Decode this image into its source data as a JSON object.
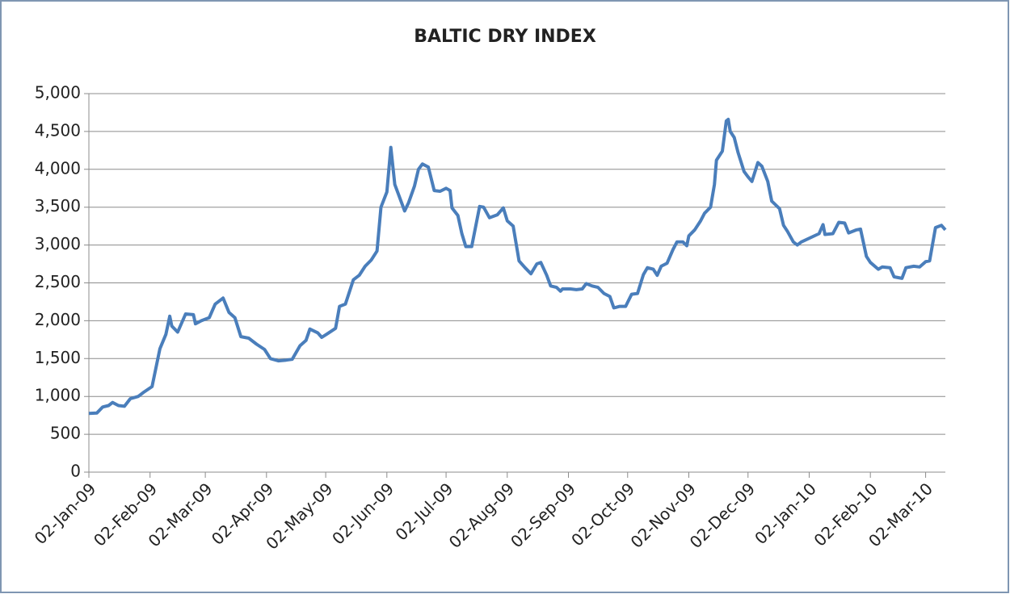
{
  "chart_data": {
    "type": "line",
    "title": "BALTIC DRY INDEX",
    "color": "#4a7ebb",
    "grid": true,
    "x": [
      "2009-01-02",
      "2009-01-06",
      "2009-01-09",
      "2009-01-12",
      "2009-01-14",
      "2009-01-17",
      "2009-01-20",
      "2009-01-23",
      "2009-01-27",
      "2009-01-30",
      "2009-02-03",
      "2009-02-07",
      "2009-02-10",
      "2009-02-12",
      "2009-02-13",
      "2009-02-16",
      "2009-02-20",
      "2009-02-24",
      "2009-02-25",
      "2009-02-28",
      "2009-03-04",
      "2009-03-07",
      "2009-03-11",
      "2009-03-14",
      "2009-03-17",
      "2009-03-20",
      "2009-03-24",
      "2009-03-28",
      "2009-04-01",
      "2009-04-04",
      "2009-04-08",
      "2009-04-12",
      "2009-04-15",
      "2009-04-19",
      "2009-04-22",
      "2009-04-24",
      "2009-04-28",
      "2009-04-30",
      "2009-05-03",
      "2009-05-07",
      "2009-05-09",
      "2009-05-12",
      "2009-05-16",
      "2009-05-19",
      "2009-05-22",
      "2009-05-25",
      "2009-05-28",
      "2009-05-30",
      "2009-06-02",
      "2009-06-04",
      "2009-06-06",
      "2009-06-08",
      "2009-06-11",
      "2009-06-13",
      "2009-06-16",
      "2009-06-18",
      "2009-06-20",
      "2009-06-23",
      "2009-06-26",
      "2009-06-29",
      "2009-07-02",
      "2009-07-04",
      "2009-07-05",
      "2009-07-08",
      "2009-07-10",
      "2009-07-12",
      "2009-07-15",
      "2009-07-19",
      "2009-07-21",
      "2009-07-24",
      "2009-07-28",
      "2009-07-31",
      "2009-08-02",
      "2009-08-05",
      "2009-08-08",
      "2009-08-11",
      "2009-08-14",
      "2009-08-17",
      "2009-08-19",
      "2009-08-22",
      "2009-08-24",
      "2009-08-27",
      "2009-08-29",
      "2009-08-30",
      "2009-09-03",
      "2009-09-06",
      "2009-09-09",
      "2009-09-11",
      "2009-09-14",
      "2009-09-17",
      "2009-09-20",
      "2009-09-23",
      "2009-09-25",
      "2009-09-28",
      "2009-10-01",
      "2009-10-04",
      "2009-10-07",
      "2009-10-10",
      "2009-10-12",
      "2009-10-15",
      "2009-10-17",
      "2009-10-19",
      "2009-10-22",
      "2009-10-25",
      "2009-10-27",
      "2009-10-30",
      "2009-11-01",
      "2009-11-02",
      "2009-11-05",
      "2009-11-08",
      "2009-11-10",
      "2009-11-13",
      "2009-11-15",
      "2009-11-16",
      "2009-11-19",
      "2009-11-21",
      "2009-11-22",
      "2009-11-23",
      "2009-11-25",
      "2009-11-27",
      "2009-11-30",
      "2009-12-02",
      "2009-12-04",
      "2009-12-07",
      "2009-12-09",
      "2009-12-12",
      "2009-12-14",
      "2009-12-16",
      "2009-12-18",
      "2009-12-20",
      "2009-12-22",
      "2009-12-25",
      "2009-12-27",
      "2009-12-29",
      "2010-01-07",
      "2010-01-09",
      "2010-01-10",
      "2010-01-14",
      "2010-01-17",
      "2010-01-20",
      "2010-01-22",
      "2010-01-26",
      "2010-01-28",
      "2010-01-31",
      "2010-02-02",
      "2010-02-06",
      "2010-02-08",
      "2010-02-12",
      "2010-02-14",
      "2010-02-18",
      "2010-02-20",
      "2010-02-24",
      "2010-02-27",
      "2010-03-02",
      "2010-03-04",
      "2010-03-07",
      "2010-03-10",
      "2010-03-12"
    ],
    "values": [
      775,
      780,
      860,
      880,
      920,
      880,
      870,
      970,
      1000,
      1060,
      1130,
      1630,
      1820,
      2060,
      1930,
      1850,
      2090,
      2080,
      1960,
      2000,
      2040,
      2220,
      2300,
      2110,
      2040,
      1790,
      1770,
      1690,
      1620,
      1500,
      1470,
      1480,
      1490,
      1670,
      1740,
      1890,
      1840,
      1780,
      1830,
      1900,
      2190,
      2220,
      2540,
      2600,
      2720,
      2800,
      2920,
      3500,
      3700,
      4290,
      3800,
      3660,
      3450,
      3560,
      3780,
      4000,
      4070,
      4030,
      3720,
      3710,
      3750,
      3720,
      3490,
      3390,
      3150,
      2980,
      2980,
      3510,
      3500,
      3360,
      3400,
      3490,
      3320,
      3250,
      2790,
      2700,
      2620,
      2750,
      2770,
      2600,
      2460,
      2440,
      2390,
      2420,
      2420,
      2410,
      2420,
      2490,
      2460,
      2440,
      2360,
      2320,
      2170,
      2190,
      2190,
      2350,
      2360,
      2610,
      2700,
      2680,
      2600,
      2720,
      2760,
      2940,
      3040,
      3040,
      2990,
      3120,
      3200,
      3320,
      3420,
      3500,
      3800,
      4120,
      4240,
      4640,
      4660,
      4500,
      4420,
      4220,
      3970,
      3900,
      3840,
      4090,
      4040,
      3840,
      3580,
      3530,
      3480,
      3260,
      3180,
      3040,
      3000,
      3040,
      3150,
      3270,
      3140,
      3150,
      3300,
      3290,
      3160,
      3200,
      3210,
      2850,
      2770,
      2680,
      2710,
      2700,
      2580,
      2560,
      2700,
      2720,
      2710,
      2780,
      2790,
      3230,
      3260,
      3200
    ],
    "xlim": [
      "2009-01-02",
      "2010-03-12"
    ],
    "xticks": [
      {
        "value": "2009-01-02",
        "label": "02-Jan-09"
      },
      {
        "value": "2009-02-02",
        "label": "02-Feb-09"
      },
      {
        "value": "2009-03-02",
        "label": "02-Mar-09"
      },
      {
        "value": "2009-04-02",
        "label": "02-Apr-09"
      },
      {
        "value": "2009-05-02",
        "label": "02-May-09"
      },
      {
        "value": "2009-06-02",
        "label": "02-Jun-09"
      },
      {
        "value": "2009-07-02",
        "label": "02-Jul-09"
      },
      {
        "value": "2009-08-02",
        "label": "02-Aug-09"
      },
      {
        "value": "2009-09-02",
        "label": "02-Sep-09"
      },
      {
        "value": "2009-10-02",
        "label": "02-Oct-09"
      },
      {
        "value": "2009-11-02",
        "label": "02-Nov-09"
      },
      {
        "value": "2009-12-02",
        "label": "02-Dec-09"
      },
      {
        "value": "2010-01-02",
        "label": "02-Jan-10"
      },
      {
        "value": "2010-02-02",
        "label": "02-Feb-10"
      },
      {
        "value": "2010-03-02",
        "label": "02-Mar-10"
      }
    ],
    "ylim": [
      0,
      5000
    ],
    "yticks": [
      0,
      500,
      {
        "value": 1000,
        "label": "1,000"
      },
      {
        "value": 1500,
        "label": "1,500"
      },
      {
        "value": 2000,
        "label": "2,000"
      },
      {
        "value": 2500,
        "label": "2,500"
      },
      {
        "value": 3000,
        "label": "3,000"
      },
      {
        "value": 3500,
        "label": "3,500"
      },
      {
        "value": 4000,
        "label": "4,000"
      },
      {
        "value": 4500,
        "label": "4,500"
      },
      {
        "value": 5000,
        "label": "5,000"
      }
    ]
  }
}
